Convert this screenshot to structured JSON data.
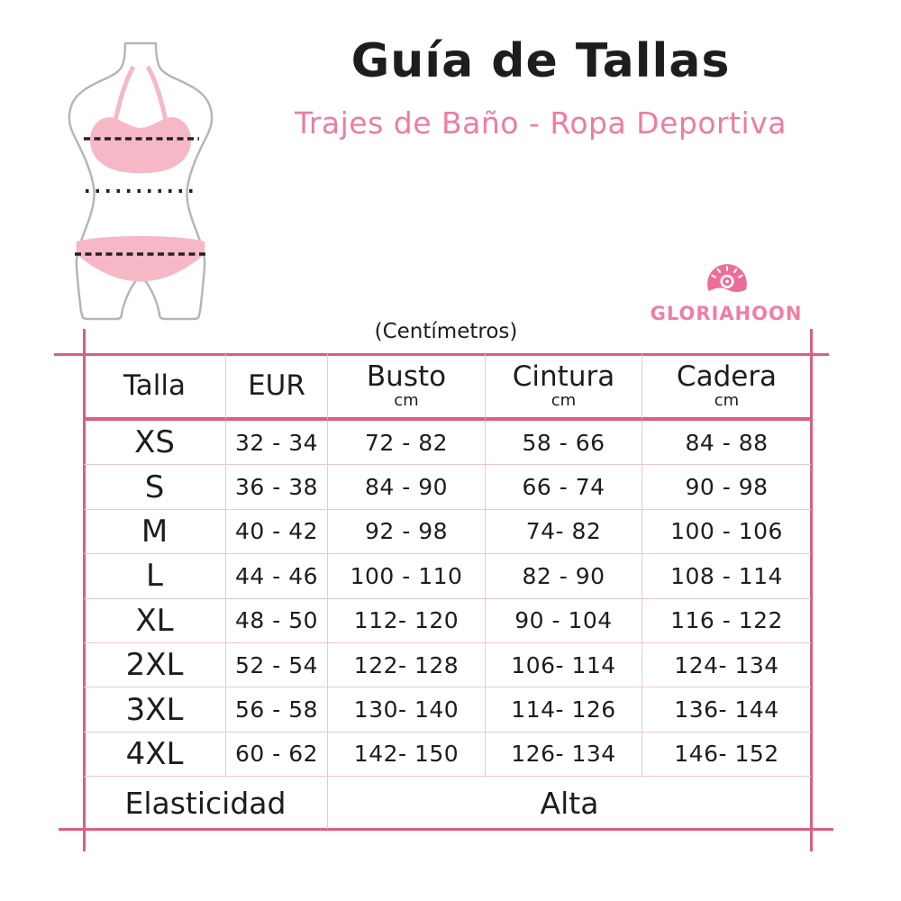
{
  "chart_data": {
    "type": "table",
    "title": "Guía de Tallas",
    "subtitle": "Trajes de Baño - Ropa Deportiva",
    "units_label": "(Centímetros)",
    "columns": [
      {
        "label": "Talla",
        "sub": ""
      },
      {
        "label": "EUR",
        "sub": ""
      },
      {
        "label": "Busto",
        "sub": "cm"
      },
      {
        "label": "Cintura",
        "sub": "cm"
      },
      {
        "label": "Cadera",
        "sub": "cm"
      }
    ],
    "rows": [
      {
        "size": "XS",
        "eur": "32 - 34",
        "busto": "72 - 82",
        "cintura": "58 - 66",
        "cadera": "84 - 88"
      },
      {
        "size": "S",
        "eur": "36 - 38",
        "busto": "84 - 90",
        "cintura": "66 - 74",
        "cadera": "90 - 98"
      },
      {
        "size": "M",
        "eur": "40 - 42",
        "busto": "92 - 98",
        "cintura": "74- 82",
        "cadera": "100 - 106"
      },
      {
        "size": "L",
        "eur": "44 - 46",
        "busto": "100 - 110",
        "cintura": "82 - 90",
        "cadera": "108 - 114"
      },
      {
        "size": "XL",
        "eur": "48 - 50",
        "busto": "112- 120",
        "cintura": "90 - 104",
        "cadera": "116 - 122"
      },
      {
        "size": "2XL",
        "eur": "52 - 54",
        "busto": "122- 128",
        "cintura": "106- 114",
        "cadera": "124- 134"
      },
      {
        "size": "3XL",
        "eur": "56 - 58",
        "busto": "130- 140",
        "cintura": "114- 126",
        "cadera": "136- 144"
      },
      {
        "size": "4XL",
        "eur": "60 - 62",
        "busto": "142- 150",
        "cintura": "126- 134",
        "cadera": "146- 152"
      }
    ],
    "footer": {
      "label": "Elasticidad",
      "value": "Alta"
    },
    "legend_position": "none",
    "grid": true
  },
  "brand": {
    "name": "GLORIAHOON",
    "icon": "sun-wave-badge-icon"
  },
  "mannequin": {
    "measurement_lines": [
      "Busto",
      "Cintura",
      "Cadera"
    ]
  },
  "colors": {
    "accent_pink": "#db5f80",
    "grid_pink": "#eec6d0",
    "subtitle_pink": "#ec7da1",
    "logo_pink": "#ee7fa4",
    "bikini_pink": "#f6b8c7",
    "outline_gray": "#b6b6b6",
    "ink": "#1d1d1d"
  }
}
